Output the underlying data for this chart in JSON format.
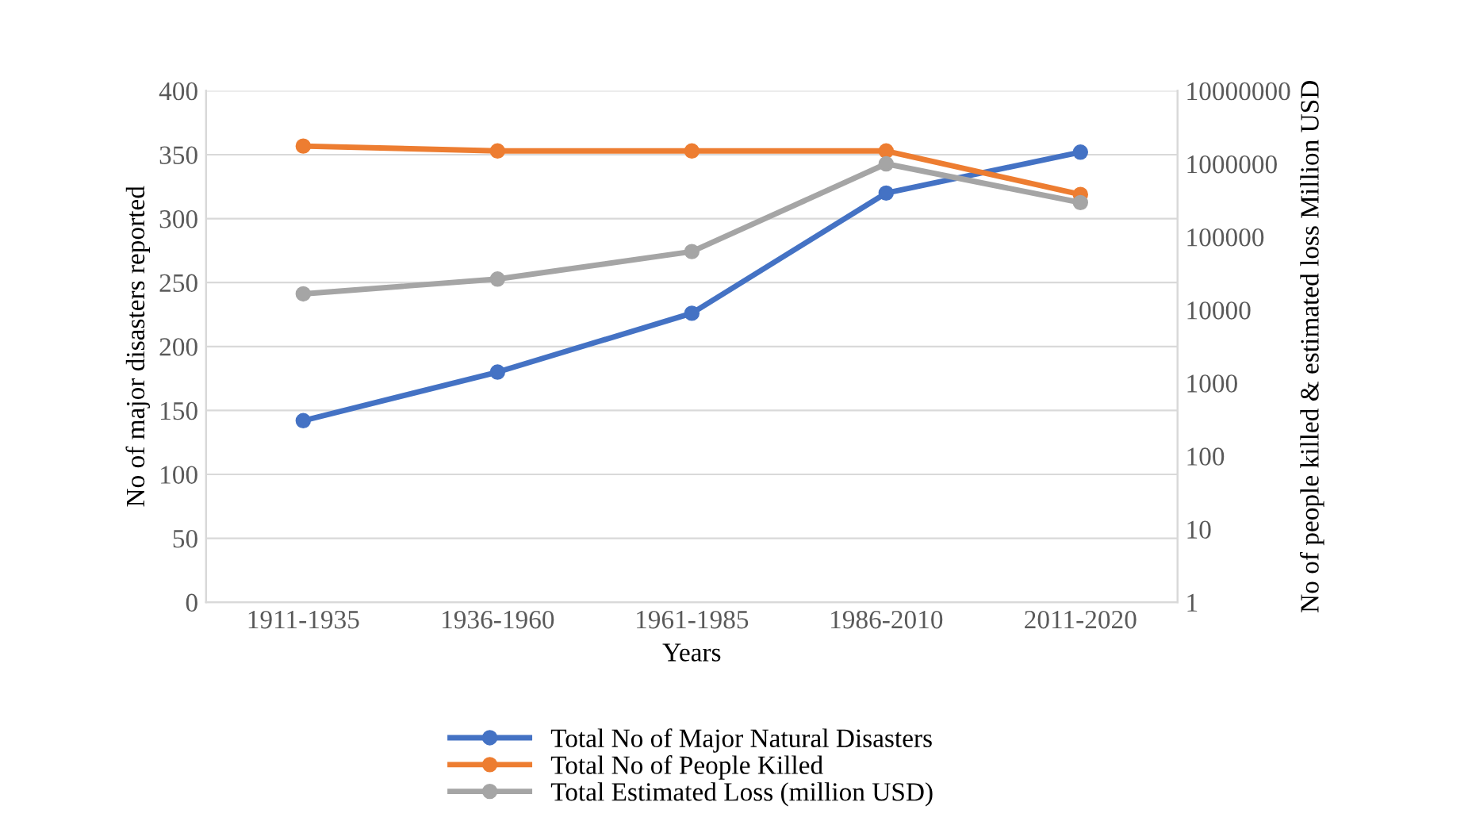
{
  "chart_data": {
    "type": "line",
    "xlabel": "Years",
    "ylabel": "No of major disasters reported",
    "y2label": "No of people killed & estimated loss Million USD",
    "categories": [
      "1911-1935",
      "1936-1960",
      "1961-1985",
      "1986-2010",
      "2011-2020"
    ],
    "series": [
      {
        "name": "Total No of Major Natural Disasters",
        "color": "#4472c4",
        "values": [
          142,
          180,
          226,
          320,
          352
        ]
      },
      {
        "name": "Total No of People Killed",
        "color": "#ed7d31",
        "axis": "y2",
        "values": [
          1750000,
          1500000,
          1500000,
          1500000,
          380000
        ]
      },
      {
        "name": "Total Estimated Loss (million USD)",
        "color": "#a5a5a5",
        "axis": "y2",
        "values": [
          16600,
          26500,
          63000,
          1000000,
          295000
        ]
      }
    ],
    "ylim": [
      0,
      400
    ],
    "yticks": [
      0,
      50,
      100,
      150,
      200,
      250,
      300,
      350,
      400
    ],
    "y2lim": [
      1,
      10000000
    ],
    "y2ticks": [
      1,
      10,
      100,
      1000,
      10000,
      100000,
      1000000,
      10000000
    ],
    "log": "y2",
    "grid": "y",
    "legend": "bottom",
    "marker": "circle",
    "line_style": "solid"
  }
}
